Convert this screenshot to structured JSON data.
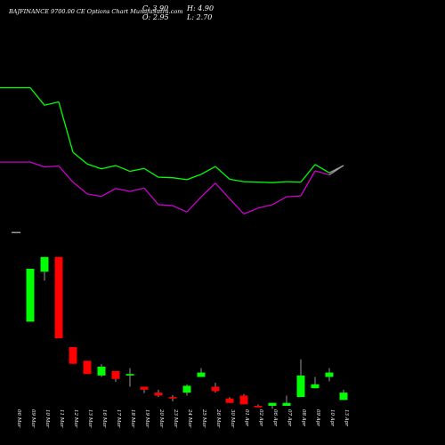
{
  "header": {
    "title": "BAJFINANCE 9700.00 CE Options Chart MunafaSutra.com",
    "close_label": "C:",
    "close_value": "3.90",
    "open_label": "O:",
    "open_value": "2.95",
    "high_label": "H:",
    "high_value": "4.90",
    "low_label": "L:",
    "low_value": "2.70"
  },
  "colors": {
    "up": "#00ff00",
    "down": "#ff0000",
    "ma_fast": "#00ff00",
    "ma_slow": "#cc00cc",
    "tail": "#999999",
    "background": "#000000",
    "text": "#ffffff"
  },
  "chart_data": {
    "type": "candlestick",
    "categories": [
      "06 Mar",
      "09 Mar",
      "10 Mar",
      "11 Mar",
      "12 Mar",
      "13 Mar",
      "16 Mar",
      "17 Mar",
      "18 Mar",
      "19 Mar",
      "20 Mar",
      "23 Mar",
      "24 Mar",
      "25 Mar",
      "26 Mar",
      "30 Mar",
      "01 Apr",
      "02 Apr",
      "06 Apr",
      "07 Apr",
      "08 Apr",
      "09 Apr",
      "10 Apr",
      "13 Apr"
    ],
    "candles": [
      {
        "open": 31.4,
        "close": 31.4,
        "high": 31.4,
        "low": 31.4
      },
      {
        "open": 13.2,
        "close": 24.0,
        "high": 24.0,
        "low": 13.2
      },
      {
        "open": 23.4,
        "close": 26.4,
        "high": 26.4,
        "low": 21.6
      },
      {
        "open": 26.4,
        "close": 9.8,
        "high": 26.4,
        "low": 9.8
      },
      {
        "open": 8.0,
        "close": 4.6,
        "high": 8.0,
        "low": 4.6
      },
      {
        "open": 5.2,
        "close": 2.5,
        "high": 5.2,
        "low": 2.5
      },
      {
        "open": 2.2,
        "close": 4.0,
        "high": 4.5,
        "low": 1.9
      },
      {
        "open": 3.1,
        "close": 1.5,
        "high": 3.1,
        "low": 0.9
      },
      {
        "open": 2.2,
        "close": 2.5,
        "high": 3.7,
        "low": -0.1
      },
      {
        "open": -0.1,
        "close": -0.7,
        "high": -0.1,
        "low": -1.4
      },
      {
        "open": -1.3,
        "close": -1.9,
        "high": -0.7,
        "low": -2.2
      },
      {
        "open": -2.2,
        "close": -2.5,
        "high": -1.8,
        "low": -3.1
      },
      {
        "open": -1.3,
        "close": 0.1,
        "high": 0.4,
        "low": -1.9
      },
      {
        "open": 1.9,
        "close": 2.8,
        "high": 3.7,
        "low": 1.9
      },
      {
        "open": -0.1,
        "close": -1.0,
        "high": 0.7,
        "low": -1.3
      },
      {
        "open": -2.5,
        "close": -3.4,
        "high": -2.2,
        "low": -3.4
      },
      {
        "open": -1.9,
        "close": -3.7,
        "high": -1.6,
        "low": -3.7
      },
      {
        "open": -4.0,
        "close": -4.3,
        "high": -3.7,
        "low": -4.3
      },
      {
        "open": -4.0,
        "close": -3.4,
        "high": -3.4,
        "low": -4.6
      },
      {
        "open": -4.0,
        "close": -3.4,
        "high": -1.9,
        "low": -4.0
      },
      {
        "open": -2.2,
        "close": 2.2,
        "high": 5.5,
        "low": -2.2
      },
      {
        "open": -0.4,
        "close": 0.4,
        "high": 1.9,
        "low": -0.4
      },
      {
        "open": 1.9,
        "close": 2.8,
        "high": 3.7,
        "low": 1.0
      },
      {
        "open": -2.8,
        "close": -1.3,
        "high": -0.7,
        "low": -2.8
      }
    ],
    "series": [
      {
        "values": [
          61.0,
          61.0,
          57.4,
          58.1,
          47.8,
          45.4,
          44.4,
          45.1,
          43.9,
          44.5,
          42.7,
          42.6,
          42.2,
          43.3,
          44.9,
          42.3,
          41.8,
          41.7,
          41.6,
          41.8,
          41.7,
          45.3,
          43.6,
          45.1
        ]
      },
      {
        "values": [
          45.8,
          45.8,
          44.8,
          45.0,
          41.7,
          39.3,
          38.8,
          40.4,
          39.8,
          40.5,
          37.1,
          36.9,
          35.6,
          38.7,
          41.5,
          38.3,
          35.2,
          36.4,
          37.1,
          38.7,
          38.9,
          44.0,
          43.2,
          45.1
        ]
      }
    ]
  }
}
